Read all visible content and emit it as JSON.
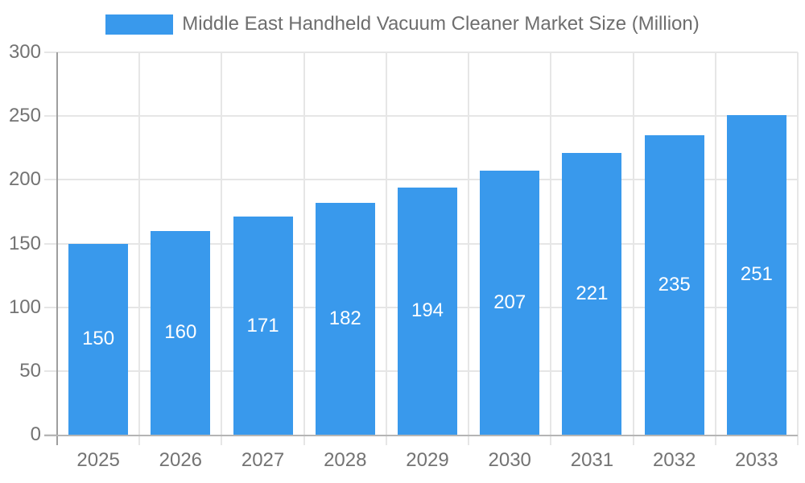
{
  "legend": {
    "label": "Middle East Handheld Vacuum Cleaner Market Size (Million)"
  },
  "chart_data": {
    "type": "bar",
    "title": "Middle East Handheld Vacuum Cleaner Market Size (Million)",
    "series_name": "Middle East Handheld Vacuum Cleaner Market Size (Million)",
    "categories": [
      "2025",
      "2026",
      "2027",
      "2028",
      "2029",
      "2030",
      "2031",
      "2032",
      "2033"
    ],
    "values": [
      150,
      160,
      171,
      182,
      194,
      207,
      221,
      235,
      251
    ],
    "xlabel": "",
    "ylabel": "",
    "ylim": [
      0,
      300
    ],
    "yticks": [
      0,
      50,
      100,
      150,
      200,
      250,
      300
    ],
    "grid": true,
    "legend_position": "top",
    "value_labels": "inside-center",
    "colors": {
      "bar": "#3999EC",
      "grid": "#e6e6e6",
      "y_axis_line": "#9e9e9e",
      "x_axis_line": "#b5b5b5",
      "tick_text": "#737373",
      "legend_text": "#6e6e6e",
      "value_label_text": "#ffffff",
      "background": "#ffffff"
    }
  }
}
